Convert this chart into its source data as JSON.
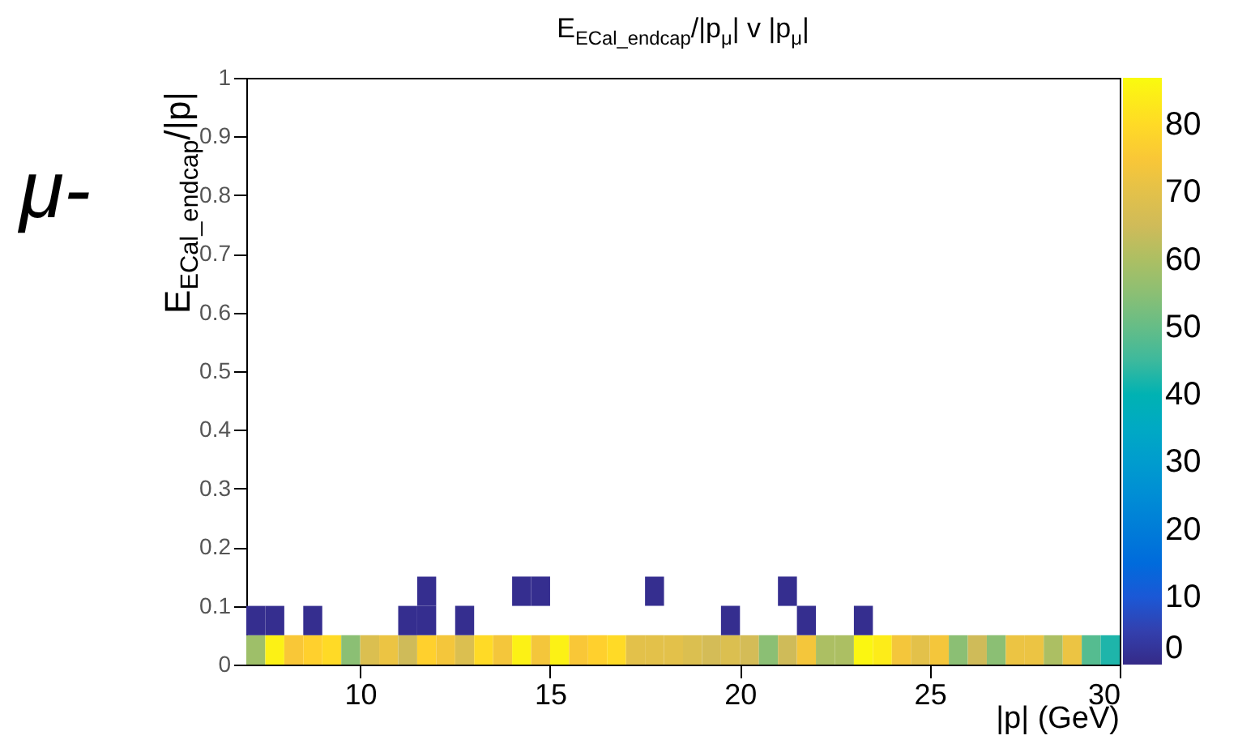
{
  "chart_data": {
    "type": "scatter",
    "marker": "square",
    "title": "E$_{ECal_endcap}$/|p$_{μ}$| v |p$_{μ}$|",
    "xlabel": "|p| (GeV)",
    "ylabel": "E$_{ECal_endcap}$/|p|",
    "annotations": [
      "μ-"
    ],
    "xlim": [
      7,
      30
    ],
    "xticks": [
      10,
      15,
      20,
      25,
      30
    ],
    "ylim": [
      0,
      1
    ],
    "yticks": [
      0,
      0.1,
      0.2,
      0.3,
      0.4,
      0.5,
      0.6,
      0.7,
      0.8,
      0.9,
      1
    ],
    "clim": [
      0,
      87
    ],
    "cticks": [
      0,
      10,
      20,
      30,
      40,
      50,
      60,
      70,
      80
    ],
    "x": [
      7.25,
      7.75,
      8.25,
      8.75,
      9.25,
      9.75,
      10.25,
      10.75,
      11.25,
      11.75,
      12.25,
      12.75,
      13.25,
      13.75,
      14.25,
      14.75,
      15.25,
      15.75,
      16.25,
      16.75,
      17.25,
      17.75,
      18.25,
      18.75,
      19.25,
      19.75,
      20.25,
      20.75,
      21.25,
      21.75,
      22.25,
      22.75,
      23.25,
      23.75,
      24.25,
      24.75,
      25.25,
      25.75,
      26.25,
      26.75,
      27.25,
      27.75,
      28.25,
      28.75,
      29.25,
      29.75,
      7.25,
      7.75,
      8.75,
      11.25,
      11.75,
      12.75,
      19.75,
      21.75,
      23.25,
      11.75,
      14.25,
      14.75,
      17.75,
      21.25
    ],
    "values": [
      0.025,
      0.025,
      0.025,
      0.025,
      0.025,
      0.025,
      0.025,
      0.025,
      0.025,
      0.025,
      0.025,
      0.025,
      0.025,
      0.025,
      0.025,
      0.025,
      0.025,
      0.025,
      0.025,
      0.025,
      0.025,
      0.025,
      0.025,
      0.025,
      0.025,
      0.025,
      0.025,
      0.025,
      0.025,
      0.025,
      0.025,
      0.025,
      0.025,
      0.025,
      0.025,
      0.025,
      0.025,
      0.025,
      0.025,
      0.025,
      0.025,
      0.025,
      0.025,
      0.025,
      0.025,
      0.025,
      0.075,
      0.075,
      0.075,
      0.075,
      0.075,
      0.075,
      0.075,
      0.075,
      0.075,
      0.125,
      0.125,
      0.125,
      0.125,
      0.125
    ],
    "cvalues": [
      58,
      85,
      75,
      78,
      80,
      55,
      68,
      72,
      65,
      78,
      74,
      68,
      80,
      74,
      85,
      74,
      85,
      75,
      78,
      80,
      70,
      70,
      70,
      68,
      66,
      68,
      66,
      55,
      65,
      74,
      60,
      60,
      86,
      84,
      74,
      70,
      74,
      55,
      65,
      55,
      72,
      72,
      60,
      72,
      48,
      42,
      1,
      1,
      1,
      1,
      1,
      1,
      1,
      1,
      1,
      1,
      1,
      1,
      1,
      1
    ]
  }
}
